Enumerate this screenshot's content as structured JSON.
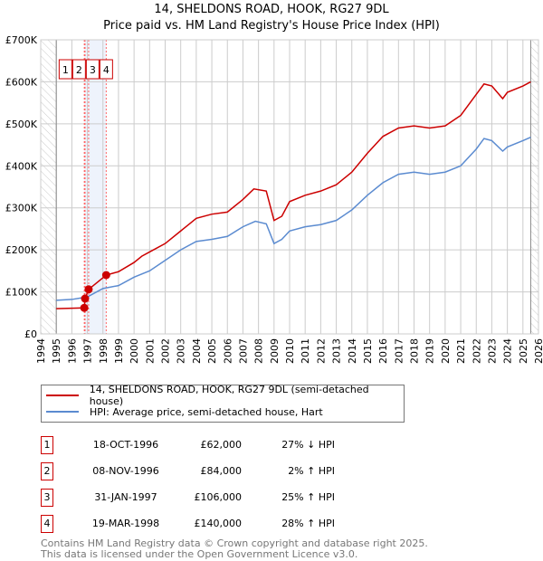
{
  "chart_data": {
    "type": "line",
    "title": "14, SHELDONS ROAD, HOOK, RG27 9DL",
    "subtitle": "Price paid vs. HM Land Registry's House Price Index (HPI)",
    "xlim": [
      1994,
      2026
    ],
    "ylim": [
      0,
      700000
    ],
    "x_ticks": [
      "1994",
      "1995",
      "1996",
      "1997",
      "1998",
      "1999",
      "2000",
      "2001",
      "2002",
      "2003",
      "2004",
      "2005",
      "2006",
      "2007",
      "2008",
      "2009",
      "2010",
      "2011",
      "2012",
      "2013",
      "2014",
      "2015",
      "2016",
      "2017",
      "2018",
      "2019",
      "2020",
      "2021",
      "2022",
      "2023",
      "2024",
      "2025",
      "2026"
    ],
    "y_ticks": [
      {
        "v": 0,
        "label": "£0"
      },
      {
        "v": 100000,
        "label": "£100K"
      },
      {
        "v": 200000,
        "label": "£200K"
      },
      {
        "v": 300000,
        "label": "£300K"
      },
      {
        "v": 400000,
        "label": "£400K"
      },
      {
        "v": 500000,
        "label": "£500K"
      },
      {
        "v": 600000,
        "label": "£600K"
      },
      {
        "v": 700000,
        "label": "£700K"
      }
    ],
    "grid": true,
    "series": [
      {
        "name": "14, SHELDONS ROAD, HOOK, RG27 9DL (semi-detached house)",
        "color": "#cc0000",
        "x": [
          1995,
          1996.8,
          1996.85,
          1997.08,
          1998.21,
          1999,
          2000,
          2000.5,
          2001,
          2002,
          2003,
          2003.5,
          2004,
          2005,
          2006,
          2007,
          2007.7,
          2008.5,
          2009,
          2009.5,
          2010,
          2011,
          2012,
          2013,
          2014,
          2015,
          2016,
          2017,
          2018,
          2019,
          2020,
          2021,
          2022,
          2022.5,
          2023,
          2023.7,
          2024,
          2025,
          2025.5
        ],
        "y": [
          60000,
          62000,
          84000,
          106000,
          140000,
          148000,
          170000,
          185000,
          195000,
          215000,
          245000,
          260000,
          275000,
          285000,
          290000,
          320000,
          345000,
          340000,
          270000,
          280000,
          315000,
          330000,
          340000,
          355000,
          385000,
          430000,
          470000,
          490000,
          495000,
          490000,
          495000,
          520000,
          570000,
          595000,
          590000,
          560000,
          575000,
          590000,
          600000
        ]
      },
      {
        "name": "HPI: Average price, semi-detached house, Hart",
        "color": "#5b8bd0",
        "x": [
          1995,
          1996,
          1997,
          1998,
          1999,
          2000,
          2001,
          2002,
          2003,
          2004,
          2005,
          2006,
          2007,
          2007.8,
          2008.5,
          2009,
          2009.5,
          2010,
          2011,
          2012,
          2013,
          2014,
          2015,
          2016,
          2017,
          2018,
          2019,
          2020,
          2021,
          2022,
          2022.5,
          2023,
          2023.7,
          2024,
          2025,
          2025.5
        ],
        "y": [
          80000,
          82000,
          88000,
          108000,
          115000,
          135000,
          150000,
          175000,
          200000,
          220000,
          225000,
          232000,
          255000,
          268000,
          262000,
          215000,
          225000,
          245000,
          255000,
          260000,
          270000,
          295000,
          330000,
          360000,
          380000,
          385000,
          380000,
          385000,
          400000,
          440000,
          465000,
          460000,
          435000,
          445000,
          460000,
          468000
        ]
      }
    ],
    "sales": [
      {
        "n": "1",
        "x": 1996.8,
        "date": "18-OCT-1996",
        "price": "£62,000",
        "value": 62000,
        "hpi": "27% ↓ HPI"
      },
      {
        "n": "2",
        "x": 1996.85,
        "date": "08-NOV-1996",
        "price": "£84,000",
        "value": 84000,
        "hpi": "2% ↑ HPI"
      },
      {
        "n": "3",
        "x": 1997.08,
        "date": "31-JAN-1997",
        "price": "£106,000",
        "value": 106000,
        "hpi": "25% ↑ HPI"
      },
      {
        "n": "4",
        "x": 1998.21,
        "date": "19-MAR-1998",
        "price": "£140,000",
        "value": 140000,
        "hpi": "28% ↑ HPI"
      }
    ],
    "legend_position": "below"
  },
  "footer": {
    "line1": "Contains HM Land Registry data © Crown copyright and database right 2025.",
    "line2": "This data is licensed under the Open Government Licence v3.0."
  }
}
